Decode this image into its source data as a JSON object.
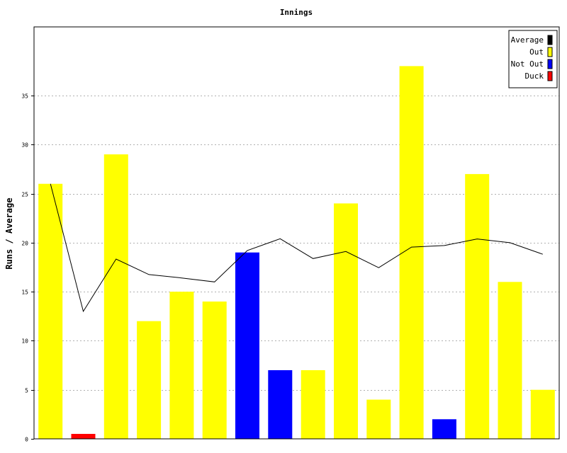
{
  "chart_data": {
    "type": "bar",
    "title": "Innings",
    "xlabel": "",
    "ylabel": "Runs / Average",
    "ylim": [
      0,
      42
    ],
    "yticks": [
      0,
      5,
      10,
      15,
      20,
      25,
      30,
      35
    ],
    "grid": "horizontal-dotted",
    "legend_position": "top-right",
    "legend": [
      {
        "label": "Average",
        "color": "#000000"
      },
      {
        "label": "Out",
        "color": "#ffff00"
      },
      {
        "label": "Not Out",
        "color": "#0000ff"
      },
      {
        "label": "Duck",
        "color": "#ff0000"
      }
    ],
    "innings": [
      {
        "runs": 26,
        "status": "Out"
      },
      {
        "runs": 0,
        "status": "Duck"
      },
      {
        "runs": 29,
        "status": "Out"
      },
      {
        "runs": 12,
        "status": "Out"
      },
      {
        "runs": 15,
        "status": "Out"
      },
      {
        "runs": 14,
        "status": "Out"
      },
      {
        "runs": 19,
        "status": "Not Out"
      },
      {
        "runs": 7,
        "status": "Not Out"
      },
      {
        "runs": 7,
        "status": "Out"
      },
      {
        "runs": 24,
        "status": "Out"
      },
      {
        "runs": 4,
        "status": "Out"
      },
      {
        "runs": 38,
        "status": "Out"
      },
      {
        "runs": 2,
        "status": "Not Out"
      },
      {
        "runs": 27,
        "status": "Out"
      },
      {
        "runs": 16,
        "status": "Out"
      },
      {
        "runs": 5,
        "status": "Out"
      }
    ],
    "average": [
      26,
      13,
      18.33,
      16.75,
      16.4,
      16,
      19.2,
      20.4,
      18.38,
      19.1,
      17.45,
      19.55,
      19.71,
      20.38,
      20,
      18.82
    ],
    "colors": {
      "Out": "#ffff00",
      "Not Out": "#0000ff",
      "Duck": "#ff0000",
      "Average": "#000000"
    }
  }
}
